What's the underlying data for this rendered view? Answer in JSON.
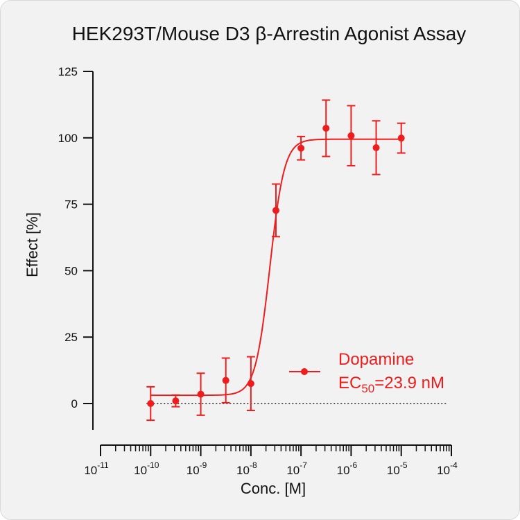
{
  "chart_data": {
    "type": "scatter",
    "title": "HEK293T/Mouse D3 β-Arrestin Agonist Assay",
    "xlabel": "Conc. [M]",
    "ylabel": "Effect  [%]",
    "x_scale": "log",
    "xlim": [
      1e-11,
      0.0001
    ],
    "ylim": [
      -10,
      125
    ],
    "y_ticks": [
      0,
      25,
      50,
      75,
      100,
      125
    ],
    "x_ticks": [
      {
        "base": "10",
        "exp": "-11"
      },
      {
        "base": "10",
        "exp": "-10"
      },
      {
        "base": "10",
        "exp": "-9"
      },
      {
        "base": "10",
        "exp": "-8"
      },
      {
        "base": "10",
        "exp": "-7"
      },
      {
        "base": "10",
        "exp": "-6"
      },
      {
        "base": "10",
        "exp": "-5"
      },
      {
        "base": "10",
        "exp": "-4"
      }
    ],
    "reference_line": {
      "y": 0,
      "style": "dotted"
    },
    "series": [
      {
        "name": "Dopamine",
        "color": "#ee1c1c",
        "ec50_label": "EC",
        "ec50_subscript": "50",
        "ec50_value": "=23.9 nM",
        "points": [
          {
            "x": 1e-10,
            "y": 0.0,
            "err": 6.3
          },
          {
            "x": 3.16e-10,
            "y": 1.0,
            "err": 2.2
          },
          {
            "x": 1e-09,
            "y": 3.5,
            "err": 7.9
          },
          {
            "x": 3.16e-09,
            "y": 8.7,
            "err": 8.4
          },
          {
            "x": 1e-08,
            "y": 7.5,
            "err": 10.1
          },
          {
            "x": 3.16e-08,
            "y": 72.7,
            "err": 9.9
          },
          {
            "x": 1e-07,
            "y": 96.1,
            "err": 4.4
          },
          {
            "x": 3.16e-07,
            "y": 103.6,
            "err": 10.6
          },
          {
            "x": 1e-06,
            "y": 100.8,
            "err": 11.3
          },
          {
            "x": 3.16e-06,
            "y": 96.3,
            "err": 10.1
          },
          {
            "x": 1e-05,
            "y": 99.9,
            "err": 5.6
          }
        ],
        "fit": {
          "bottom": 3.1,
          "top": 99.5,
          "log_ec50": -7.6216,
          "hill": 3.0
        }
      }
    ],
    "legend_position": "right"
  }
}
